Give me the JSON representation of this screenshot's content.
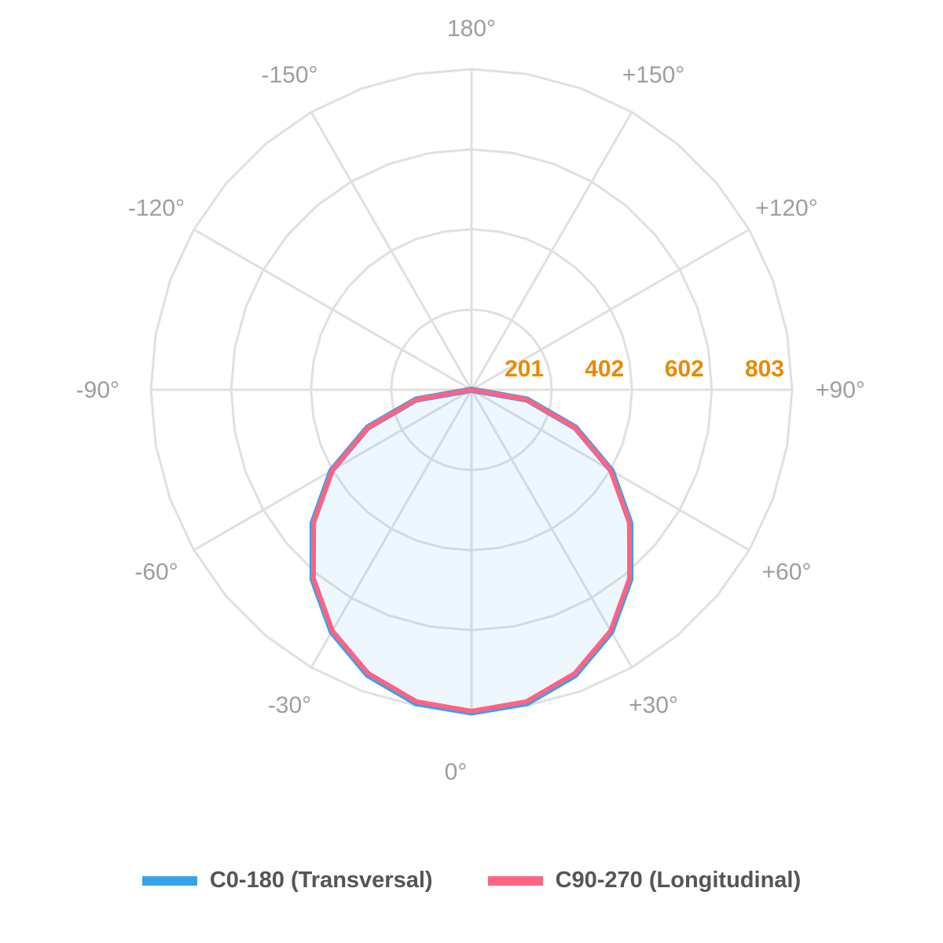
{
  "chart_data": {
    "type": "polar-line",
    "angle_unit": "degrees",
    "angle_labels": [
      "180°",
      "+150°",
      "+120°",
      "+90°",
      "+60°",
      "+30°",
      "0°",
      "-30°",
      "-60°",
      "-90°",
      "-120°",
      "-150°"
    ],
    "angle_label_values": [
      180,
      150,
      120,
      90,
      60,
      30,
      0,
      -30,
      -60,
      -90,
      -120,
      -150
    ],
    "radial_ticks": [
      201,
      402,
      602,
      803
    ],
    "radial_tick_labels": [
      "201",
      "402",
      "602",
      "803"
    ],
    "rmax": 803,
    "grid": true,
    "legend_position": "bottom",
    "angles": [
      -180,
      -170,
      -160,
      -150,
      -140,
      -130,
      -120,
      -110,
      -100,
      -90,
      -80,
      -70,
      -60,
      -50,
      -40,
      -30,
      -20,
      -10,
      0,
      10,
      20,
      30,
      40,
      50,
      60,
      70,
      80,
      90,
      100,
      110,
      120,
      130,
      140,
      150,
      160,
      170,
      180
    ],
    "series": [
      {
        "name": "C0-180 (Transversal)",
        "color": "#36a2eb",
        "fill": "rgba(54,162,235,0.09)",
        "values": [
          0,
          0,
          0,
          0,
          0,
          0,
          0,
          0,
          0,
          0,
          141,
          277,
          405,
          519,
          619,
          700,
          760,
          797,
          808,
          797,
          760,
          700,
          619,
          519,
          405,
          277,
          141,
          0,
          0,
          0,
          0,
          0,
          0,
          0,
          0,
          0,
          0
        ]
      },
      {
        "name": "C90-270 (Longitudinal)",
        "color": "#ff6384",
        "fill": "none",
        "values": [
          0,
          0,
          0,
          0,
          0,
          0,
          0,
          0,
          0,
          0,
          139,
          275,
          402,
          516,
          616,
          697,
          756,
          793,
          805,
          793,
          756,
          697,
          616,
          516,
          402,
          275,
          139,
          0,
          0,
          0,
          0,
          0,
          0,
          0,
          0,
          0,
          0
        ]
      }
    ],
    "tick_label_color": "#e88a00",
    "grid_color": "#e0e0e0"
  }
}
